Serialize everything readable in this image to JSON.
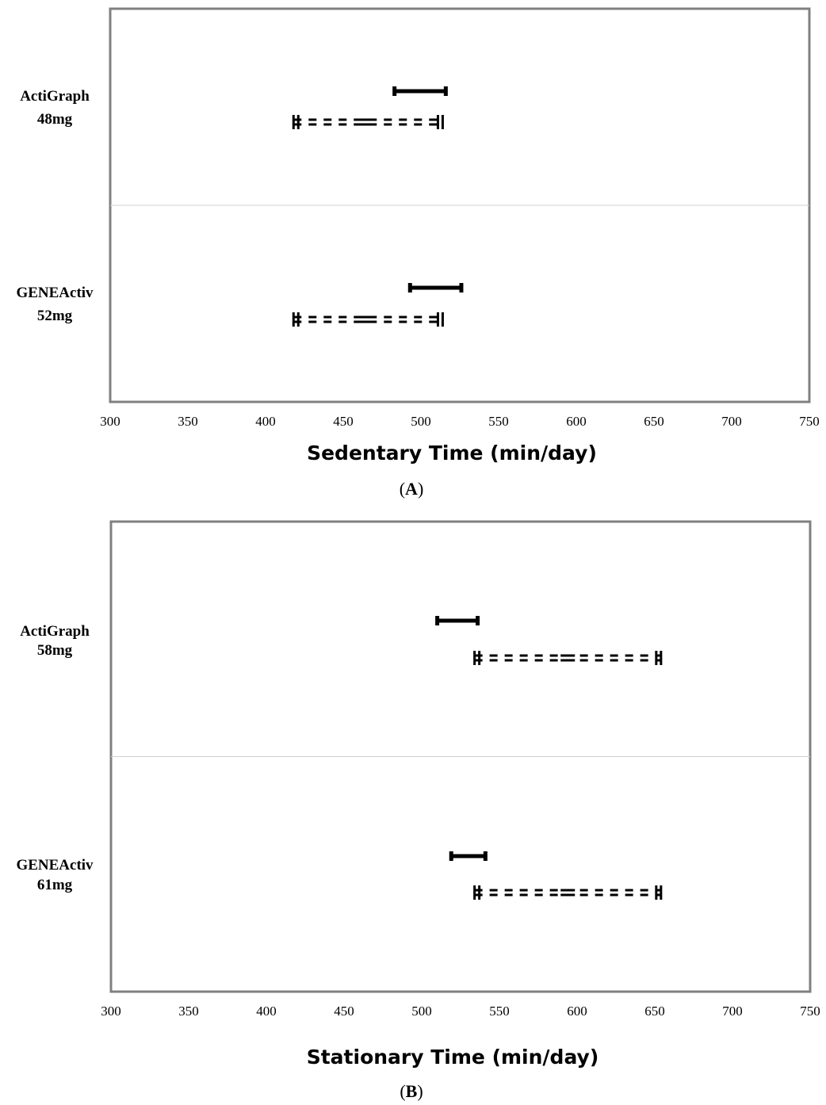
{
  "chart_data": [
    {
      "type": "range",
      "panel_label": "A",
      "xlabel": "Sedentary Time (min/day)",
      "xlim": [
        300,
        750
      ],
      "xticks": [
        300,
        350,
        400,
        450,
        500,
        550,
        600,
        650,
        700,
        750
      ],
      "categories": [
        {
          "label_line1": "ActiGraph",
          "label_line2": "48mg",
          "solid_interval": [
            483,
            516
          ],
          "dashed_interval": [
            418,
            514
          ],
          "dashed_center": 466
        },
        {
          "label_line1": "GENEActiv",
          "label_line2": "52mg",
          "solid_interval": [
            493,
            526
          ],
          "dashed_interval": [
            418,
            514
          ],
          "dashed_center": 466
        }
      ],
      "grid": false
    },
    {
      "type": "range",
      "panel_label": "B",
      "xlabel": "Stationary Time (min/day)",
      "xlim": [
        300,
        750
      ],
      "xticks": [
        300,
        350,
        400,
        450,
        500,
        550,
        600,
        650,
        700,
        750
      ],
      "categories": [
        {
          "label_line1": "ActiGraph",
          "label_line2": "58mg",
          "solid_interval": [
            510,
            536
          ],
          "dashed_interval": [
            534,
            654
          ],
          "dashed_center": 594
        },
        {
          "label_line1": "GENEActiv",
          "label_line2": "61mg",
          "solid_interval": [
            519,
            541
          ],
          "dashed_interval": [
            534,
            654
          ],
          "dashed_center": 594
        }
      ],
      "grid": false
    }
  ],
  "colors": {
    "frame": "#808080",
    "separator": "#d0d0d0",
    "marks": "#000000"
  }
}
